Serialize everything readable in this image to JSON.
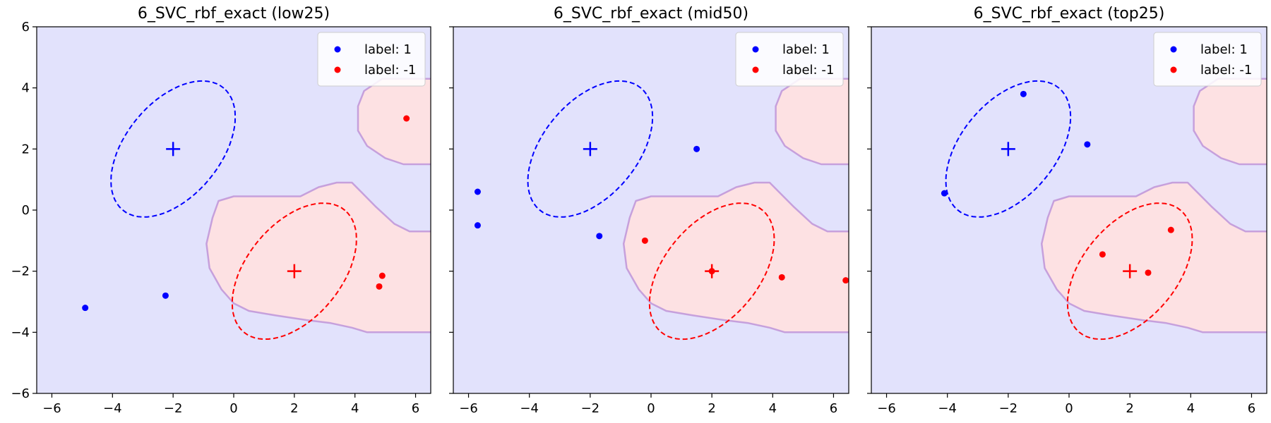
{
  "colors": {
    "class_pos": "#0000ff",
    "class_neg": "#ff0000",
    "region_pos": "#e2e2fc",
    "region_neg": "#fde1e3",
    "boundary": "#c6a0dc"
  },
  "legend": {
    "placement": "top-right",
    "entries": [
      {
        "label": "label: 1",
        "color": "#0000ff"
      },
      {
        "label": "label: -1",
        "color": "#ff0000"
      }
    ]
  },
  "chart_data": [
    {
      "type": "scatter",
      "title": "6_SVC_rbf_exact (low25)",
      "xlim": [
        -6.5,
        6.5
      ],
      "ylim": [
        -6,
        6
      ],
      "xticks": [
        -6,
        -4,
        -2,
        0,
        2,
        4,
        6
      ],
      "yticks": [
        -6,
        -4,
        -2,
        0,
        2,
        4,
        6
      ],
      "show_y_tick_labels": true,
      "centers": [
        {
          "label": "1",
          "x": -2,
          "y": 2
        },
        {
          "label": "-1",
          "x": 2,
          "y": -2
        }
      ],
      "series": [
        {
          "name": "label: 1",
          "label": "1",
          "points": [
            [
              -4.9,
              -3.2
            ],
            [
              -2.25,
              -2.8
            ]
          ]
        },
        {
          "name": "label: -1",
          "label": "-1",
          "points": [
            [
              5.7,
              3.0
            ],
            [
              4.9,
              -2.15
            ],
            [
              4.8,
              -2.5
            ]
          ]
        }
      ]
    },
    {
      "type": "scatter",
      "title": "6_SVC_rbf_exact (mid50)",
      "xlim": [
        -6.5,
        6.5
      ],
      "ylim": [
        -6,
        6
      ],
      "xticks": [
        -6,
        -4,
        -2,
        0,
        2,
        4,
        6
      ],
      "yticks": [
        -6,
        -4,
        -2,
        0,
        2,
        4,
        6
      ],
      "show_y_tick_labels": false,
      "centers": [
        {
          "label": "1",
          "x": -2,
          "y": 2
        },
        {
          "label": "-1",
          "x": 2,
          "y": -2
        }
      ],
      "series": [
        {
          "name": "label: 1",
          "label": "1",
          "points": [
            [
              -5.7,
              0.6
            ],
            [
              -5.7,
              -0.5
            ],
            [
              -1.7,
              -0.85
            ],
            [
              1.5,
              2.0
            ]
          ]
        },
        {
          "name": "label: -1",
          "label": "-1",
          "points": [
            [
              -0.2,
              -1.0
            ],
            [
              2.0,
              -2.0
            ],
            [
              4.3,
              -2.2
            ],
            [
              6.4,
              -2.3
            ]
          ]
        }
      ]
    },
    {
      "type": "scatter",
      "title": "6_SVC_rbf_exact (top25)",
      "xlim": [
        -6.5,
        6.5
      ],
      "ylim": [
        -6,
        6
      ],
      "xticks": [
        -6,
        -4,
        -2,
        0,
        2,
        4,
        6
      ],
      "yticks": [
        -6,
        -4,
        -2,
        0,
        2,
        4,
        6
      ],
      "show_y_tick_labels": false,
      "centers": [
        {
          "label": "1",
          "x": -2,
          "y": 2
        },
        {
          "label": "-1",
          "x": 2,
          "y": -2
        }
      ],
      "series": [
        {
          "name": "label: 1",
          "label": "1",
          "points": [
            [
              -1.5,
              3.8
            ],
            [
              0.6,
              2.15
            ],
            [
              -4.1,
              0.55
            ]
          ]
        },
        {
          "name": "label: -1",
          "label": "-1",
          "points": [
            [
              3.35,
              -0.65
            ],
            [
              1.1,
              -1.45
            ],
            [
              2.6,
              -2.05
            ]
          ]
        }
      ]
    }
  ]
}
